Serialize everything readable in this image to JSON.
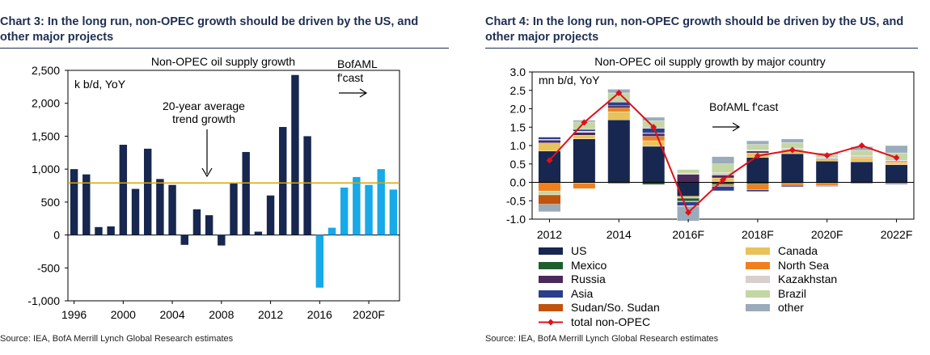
{
  "chart_data": [
    {
      "type": "bar",
      "heading": "Chart 3: In the long run, non-OPEC growth should be driven by the US, and other major projects",
      "title": "Non-OPEC oil supply growth",
      "ylabel": "k b/d, YoY",
      "ylim": [
        -1000,
        2500
      ],
      "yticks": [
        -1000,
        -500,
        0,
        500,
        1000,
        1500,
        2000,
        2500
      ],
      "ytick_labels": [
        "-1,000",
        "-500",
        "0",
        "500",
        "1,000",
        "1,500",
        "2,000",
        "2,500"
      ],
      "x": [
        1996,
        1997,
        1998,
        1999,
        2000,
        2001,
        2002,
        2003,
        2004,
        2005,
        2006,
        2007,
        2008,
        2009,
        2010,
        2011,
        2012,
        2013,
        2014,
        2015,
        2016,
        2017,
        2018,
        2019,
        2020,
        2021,
        2022
      ],
      "xtick_labels": [
        "1996",
        "2000",
        "2004",
        "2008",
        "2012",
        "2016",
        "2020F"
      ],
      "xtick_years": [
        1996,
        2000,
        2004,
        2008,
        2012,
        2016,
        2020
      ],
      "values": [
        1000,
        920,
        120,
        130,
        1370,
        700,
        1310,
        850,
        760,
        -150,
        390,
        300,
        -160,
        780,
        1260,
        50,
        600,
        1640,
        2430,
        1500,
        -800,
        110,
        720,
        880,
        760,
        1000,
        690
      ],
      "forecast_from": 2016,
      "colors": {
        "actual": "#17274f",
        "forecast": "#17a9e8",
        "average": "#d9a600"
      },
      "average": 790,
      "average_label": [
        "20-year average",
        "trend growth"
      ],
      "forecast_label": [
        "BofAML",
        "f'cast"
      ],
      "source": "Source: IEA, BofA Merrill Lynch Global Research estimates"
    },
    {
      "type": "bar",
      "stacked": true,
      "heading": "Chart 4: In the long run, non-OPEC growth should be driven by the US, and other major projects",
      "title": "Non-OPEC oil supply growth by major country",
      "ylabel": "mn b/d, YoY",
      "ylim": [
        -1.0,
        3.0
      ],
      "yticks": [
        -1.0,
        -0.5,
        0.0,
        0.5,
        1.0,
        1.5,
        2.0,
        2.5,
        3.0
      ],
      "ytick_labels": [
        "-1.0",
        "-0.5",
        "0.0",
        "0.5",
        "1.0",
        "1.5",
        "2.0",
        "2.5",
        "3.0"
      ],
      "categories": [
        "2012",
        "2013",
        "2014",
        "2015",
        "2016F",
        "2017F",
        "2018F",
        "2019F",
        "2020F",
        "2021F",
        "2022F"
      ],
      "xtick_labels": [
        "2012",
        "2014",
        "2016F",
        "2018F",
        "2020F",
        "2022F"
      ],
      "xtick_index": [
        0,
        2,
        4,
        6,
        8,
        10
      ],
      "series": [
        {
          "name": "US",
          "color": "#17274f",
          "values": [
            0.85,
            1.18,
            1.7,
            0.98,
            -0.38,
            0.0,
            0.68,
            0.78,
            0.58,
            0.56,
            0.48
          ]
        },
        {
          "name": "Canada",
          "color": "#e8c25a",
          "values": [
            0.22,
            0.1,
            0.22,
            0.15,
            -0.05,
            0.12,
            0.12,
            0.1,
            0.05,
            0.1,
            0.05
          ]
        },
        {
          "name": "Mexico",
          "color": "#1e5e2e",
          "values": [
            0.0,
            -0.02,
            -0.03,
            -0.06,
            -0.08,
            -0.06,
            -0.05,
            -0.03,
            -0.03,
            -0.02,
            -0.02
          ]
        },
        {
          "name": "North Sea",
          "color": "#f0801e",
          "values": [
            -0.24,
            -0.15,
            0.1,
            0.12,
            -0.02,
            -0.05,
            -0.15,
            -0.05,
            -0.06,
            0.03,
            0.03
          ]
        },
        {
          "name": "Russia",
          "color": "#4a2a5a",
          "values": [
            0.08,
            0.08,
            0.06,
            0.08,
            0.22,
            0.08,
            0.05,
            0.02,
            0.02,
            0.0,
            0.02
          ]
        },
        {
          "name": "Kazakhstan",
          "color": "#d8cfcf",
          "values": [
            0.02,
            0.03,
            -0.02,
            0.01,
            0.03,
            0.06,
            0.03,
            0.03,
            0.02,
            0.03,
            0.02
          ]
        },
        {
          "name": "Asia",
          "color": "#2b3e8c",
          "values": [
            0.06,
            0.05,
            0.1,
            0.13,
            -0.1,
            -0.12,
            -0.05,
            -0.04,
            -0.02,
            -0.02,
            -0.03
          ]
        },
        {
          "name": "Brazil",
          "color": "#c4d6a4",
          "values": [
            -0.1,
            0.2,
            0.25,
            0.2,
            0.1,
            0.24,
            0.15,
            0.15,
            0.08,
            0.15,
            0.2
          ]
        },
        {
          "name": "Sudan/So. Sudan",
          "color": "#c0540e",
          "values": [
            -0.26,
            0.0,
            0.0,
            0.0,
            -0.02,
            0.0,
            0.0,
            0.0,
            0.0,
            0.0,
            0.0
          ]
        },
        {
          "name": "other",
          "color": "#9aabbb",
          "values": [
            -0.2,
            0.05,
            0.1,
            0.1,
            -0.4,
            0.2,
            0.1,
            0.1,
            0.05,
            0.1,
            0.2
          ]
        }
      ],
      "line": {
        "name": "total non-OPEC",
        "color": "#e0101a",
        "values": [
          0.6,
          1.63,
          2.43,
          1.5,
          -0.82,
          0.07,
          0.72,
          0.88,
          0.73,
          1.0,
          0.67
        ]
      },
      "legend_order": [
        "US",
        "Canada",
        "Mexico",
        "North Sea",
        "Russia",
        "Kazakhstan",
        "Asia",
        "Brazil",
        "Sudan/So. Sudan",
        "other",
        "total non-OPEC"
      ],
      "forecast_label": "BofAML f'cast",
      "source": "Source: IEA, BofA Merrill Lynch Global Research estimates"
    }
  ]
}
